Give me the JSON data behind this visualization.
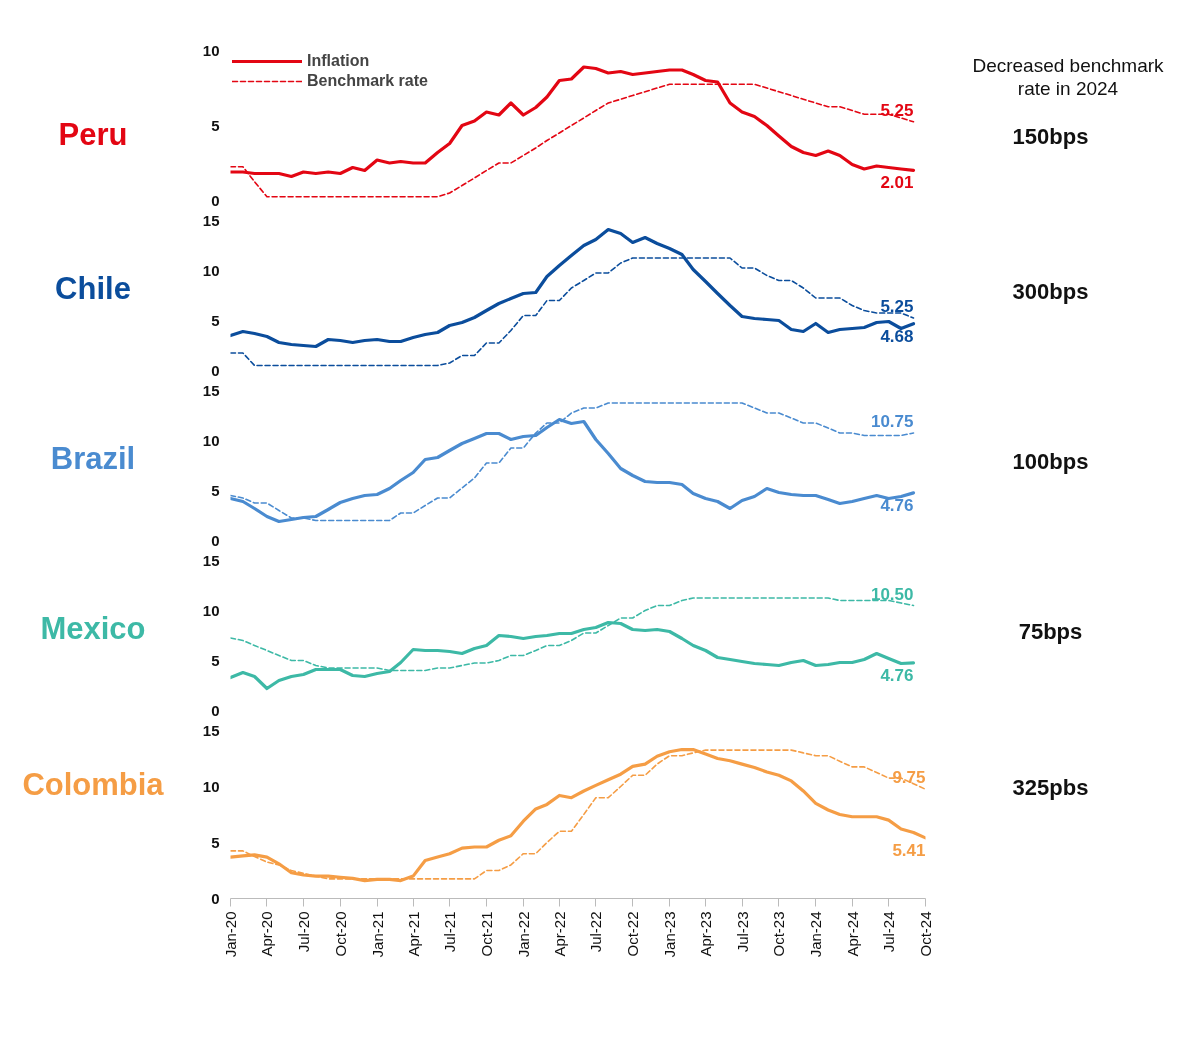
{
  "chart_data": [
    {
      "type": "line",
      "title": "Peru",
      "legend": "top left",
      "tick_labels": "y",
      "xlim": [
        "2020-01",
        "2024-10"
      ],
      "ylim": [
        0,
        10
      ],
      "yticks": [
        0,
        5,
        10
      ],
      "x": [
        "2020-01",
        "2020-02",
        "2020-03",
        "2020-04",
        "2020-05",
        "2020-06",
        "2020-07",
        "2020-08",
        "2020-09",
        "2020-10",
        "2020-11",
        "2020-12",
        "2021-01",
        "2021-02",
        "2021-03",
        "2021-04",
        "2021-05",
        "2021-06",
        "2021-07",
        "2021-08",
        "2021-09",
        "2021-10",
        "2021-11",
        "2021-12",
        "2022-01",
        "2022-02",
        "2022-03",
        "2022-04",
        "2022-05",
        "2022-06",
        "2022-07",
        "2022-08",
        "2022-09",
        "2022-10",
        "2022-11",
        "2022-12",
        "2023-01",
        "2023-02",
        "2023-03",
        "2023-04",
        "2023-05",
        "2023-06",
        "2023-07",
        "2023-08",
        "2023-09",
        "2023-10",
        "2023-11",
        "2023-12",
        "2024-01",
        "2024-02",
        "2024-03",
        "2024-04",
        "2024-05",
        "2024-06",
        "2024-07",
        "2024-08",
        "2024-09"
      ],
      "series": [
        {
          "name": "Inflation",
          "color": "#e30613",
          "line_style": "solid",
          "values": [
            1.9,
            1.9,
            1.8,
            1.8,
            1.8,
            1.6,
            1.9,
            1.8,
            1.9,
            1.8,
            2.2,
            2.0,
            2.7,
            2.5,
            2.6,
            2.5,
            2.5,
            3.2,
            3.8,
            5.0,
            5.3,
            5.9,
            5.7,
            6.5,
            5.7,
            6.2,
            6.9,
            8.0,
            8.1,
            8.9,
            8.8,
            8.5,
            8.6,
            8.4,
            8.5,
            8.6,
            8.7,
            8.7,
            8.4,
            8.0,
            7.9,
            6.5,
            5.9,
            5.6,
            5.0,
            4.3,
            3.6,
            3.2,
            3.0,
            3.3,
            3.0,
            2.4,
            2.1,
            2.3,
            2.2,
            2.1,
            2.01
          ]
        },
        {
          "name": "Benchmark rate",
          "color": "#e30613",
          "line_style": "dashed",
          "values": [
            2.25,
            2.25,
            1.25,
            0.25,
            0.25,
            0.25,
            0.25,
            0.25,
            0.25,
            0.25,
            0.25,
            0.25,
            0.25,
            0.25,
            0.25,
            0.25,
            0.25,
            0.25,
            0.5,
            1.0,
            1.5,
            2.0,
            2.5,
            2.5,
            3.0,
            3.5,
            4.0,
            4.5,
            5.0,
            5.5,
            6.0,
            6.5,
            6.75,
            7.0,
            7.25,
            7.5,
            7.75,
            7.75,
            7.75,
            7.75,
            7.75,
            7.75,
            7.75,
            7.75,
            7.5,
            7.25,
            7.0,
            6.75,
            6.5,
            6.25,
            6.25,
            6.0,
            5.75,
            5.75,
            5.75,
            5.5,
            5.25
          ]
        }
      ],
      "annotations": [
        "Decreased benchmark rate in 2024",
        {
          "text": "5.25",
          "x": "2024-09",
          "y": 5.25
        },
        {
          "text": "2.01",
          "x": "2024-09",
          "y": 2.01
        },
        "150bps"
      ]
    },
    {
      "type": "line",
      "title": "Chile",
      "tick_labels": "y",
      "xlim": [
        "2020-01",
        "2024-10"
      ],
      "ylim": [
        0,
        15
      ],
      "yticks": [
        0,
        5,
        10,
        15
      ],
      "x": [
        "2020-01",
        "2020-02",
        "2020-03",
        "2020-04",
        "2020-05",
        "2020-06",
        "2020-07",
        "2020-08",
        "2020-09",
        "2020-10",
        "2020-11",
        "2020-12",
        "2021-01",
        "2021-02",
        "2021-03",
        "2021-04",
        "2021-05",
        "2021-06",
        "2021-07",
        "2021-08",
        "2021-09",
        "2021-10",
        "2021-11",
        "2021-12",
        "2022-01",
        "2022-02",
        "2022-03",
        "2022-04",
        "2022-05",
        "2022-06",
        "2022-07",
        "2022-08",
        "2022-09",
        "2022-10",
        "2022-11",
        "2022-12",
        "2023-01",
        "2023-02",
        "2023-03",
        "2023-04",
        "2023-05",
        "2023-06",
        "2023-07",
        "2023-08",
        "2023-09",
        "2023-10",
        "2023-11",
        "2023-12",
        "2024-01",
        "2024-02",
        "2024-03",
        "2024-04",
        "2024-05",
        "2024-06",
        "2024-07",
        "2024-08",
        "2024-09"
      ],
      "series": [
        {
          "color": "#0b4d9c",
          "line_style": "solid",
          "values": [
            3.5,
            3.9,
            3.7,
            3.4,
            2.8,
            2.6,
            2.5,
            2.4,
            3.1,
            3.0,
            2.8,
            3.0,
            3.1,
            2.9,
            2.9,
            3.3,
            3.6,
            3.8,
            4.5,
            4.8,
            5.3,
            6.0,
            6.7,
            7.2,
            7.7,
            7.8,
            9.4,
            10.5,
            11.5,
            12.5,
            13.1,
            14.1,
            13.7,
            12.8,
            13.3,
            12.7,
            12.2,
            11.6,
            10.1,
            8.9,
            7.7,
            6.5,
            5.4,
            5.2,
            5.1,
            5.0,
            4.1,
            3.9,
            4.7,
            3.8,
            4.1,
            4.2,
            4.3,
            4.8,
            4.9,
            4.2,
            4.68
          ]
        },
        {
          "color": "#0b4d9c",
          "line_style": "dashed",
          "values": [
            1.75,
            1.75,
            0.5,
            0.5,
            0.5,
            0.5,
            0.5,
            0.5,
            0.5,
            0.5,
            0.5,
            0.5,
            0.5,
            0.5,
            0.5,
            0.5,
            0.5,
            0.5,
            0.75,
            1.5,
            1.5,
            2.75,
            2.75,
            4.0,
            5.5,
            5.5,
            7.0,
            7.0,
            8.25,
            9.0,
            9.75,
            9.75,
            10.75,
            11.25,
            11.25,
            11.25,
            11.25,
            11.25,
            11.25,
            11.25,
            11.25,
            11.25,
            10.25,
            10.25,
            9.5,
            9.0,
            9.0,
            8.25,
            7.25,
            7.25,
            7.25,
            6.5,
            6.0,
            5.75,
            5.75,
            5.75,
            5.25
          ]
        }
      ],
      "annotations": [
        {
          "text": "5.25",
          "x": "2024-09",
          "y": 5.25
        },
        {
          "text": "4.68",
          "x": "2024-09",
          "y": 4.68
        },
        "300bps"
      ]
    },
    {
      "type": "line",
      "title": "Brazil",
      "tick_labels": "y",
      "xlim": [
        "2020-01",
        "2024-10"
      ],
      "ylim": [
        0,
        15
      ],
      "yticks": [
        0,
        5,
        10,
        15
      ],
      "x": [
        "2020-01",
        "2020-02",
        "2020-03",
        "2020-04",
        "2020-05",
        "2020-06",
        "2020-07",
        "2020-08",
        "2020-09",
        "2020-10",
        "2020-11",
        "2020-12",
        "2021-01",
        "2021-02",
        "2021-03",
        "2021-04",
        "2021-05",
        "2021-06",
        "2021-07",
        "2021-08",
        "2021-09",
        "2021-10",
        "2021-11",
        "2021-12",
        "2022-01",
        "2022-02",
        "2022-03",
        "2022-04",
        "2022-05",
        "2022-06",
        "2022-07",
        "2022-08",
        "2022-09",
        "2022-10",
        "2022-11",
        "2022-12",
        "2023-01",
        "2023-02",
        "2023-03",
        "2023-04",
        "2023-05",
        "2023-06",
        "2023-07",
        "2023-08",
        "2023-09",
        "2023-10",
        "2023-11",
        "2023-12",
        "2024-01",
        "2024-02",
        "2024-03",
        "2024-04",
        "2024-05",
        "2024-06",
        "2024-07",
        "2024-08",
        "2024-09"
      ],
      "series": [
        {
          "color": "#4a8bd0",
          "line_style": "solid",
          "values": [
            4.2,
            3.9,
            3.2,
            2.4,
            1.9,
            2.1,
            2.3,
            2.4,
            3.1,
            3.8,
            4.2,
            4.5,
            4.6,
            5.2,
            6.0,
            6.8,
            8.1,
            8.3,
            9.0,
            9.7,
            10.2,
            10.7,
            10.7,
            10.1,
            10.4,
            10.5,
            11.3,
            12.1,
            11.7,
            11.9,
            10.1,
            8.7,
            7.2,
            6.5,
            5.9,
            5.8,
            5.8,
            5.6,
            4.7,
            4.2,
            3.9,
            3.2,
            4.0,
            4.4,
            5.2,
            4.8,
            4.6,
            4.5,
            4.5,
            4.1,
            3.7,
            3.9,
            4.2,
            4.5,
            4.2,
            4.4,
            4.76
          ]
        },
        {
          "color": "#4a8bd0",
          "line_style": "dashed",
          "values": [
            4.5,
            4.25,
            3.75,
            3.75,
            3.0,
            2.25,
            2.25,
            2.0,
            2.0,
            2.0,
            2.0,
            2.0,
            2.0,
            2.0,
            2.75,
            2.75,
            3.5,
            4.25,
            4.25,
            5.25,
            6.25,
            7.75,
            7.75,
            9.25,
            9.25,
            10.75,
            11.75,
            11.75,
            12.75,
            13.25,
            13.25,
            13.75,
            13.75,
            13.75,
            13.75,
            13.75,
            13.75,
            13.75,
            13.75,
            13.75,
            13.75,
            13.75,
            13.75,
            13.25,
            12.75,
            12.75,
            12.25,
            11.75,
            11.75,
            11.25,
            10.75,
            10.75,
            10.5,
            10.5,
            10.5,
            10.5,
            10.75
          ]
        }
      ],
      "annotations": [
        {
          "text": "10.75",
          "x": "2024-09",
          "y": 10.75
        },
        {
          "text": "4.76",
          "x": "2024-09",
          "y": 4.76
        },
        "100bps"
      ]
    },
    {
      "type": "line",
      "title": "Mexico",
      "tick_labels": "y",
      "xlim": [
        "2020-01",
        "2024-10"
      ],
      "ylim": [
        0,
        15
      ],
      "yticks": [
        0,
        5,
        10,
        15
      ],
      "x": [
        "2020-01",
        "2020-02",
        "2020-03",
        "2020-04",
        "2020-05",
        "2020-06",
        "2020-07",
        "2020-08",
        "2020-09",
        "2020-10",
        "2020-11",
        "2020-12",
        "2021-01",
        "2021-02",
        "2021-03",
        "2021-04",
        "2021-05",
        "2021-06",
        "2021-07",
        "2021-08",
        "2021-09",
        "2021-10",
        "2021-11",
        "2021-12",
        "2022-01",
        "2022-02",
        "2022-03",
        "2022-04",
        "2022-05",
        "2022-06",
        "2022-07",
        "2022-08",
        "2022-09",
        "2022-10",
        "2022-11",
        "2022-12",
        "2023-01",
        "2023-02",
        "2023-03",
        "2023-04",
        "2023-05",
        "2023-06",
        "2023-07",
        "2023-08",
        "2023-09",
        "2023-10",
        "2023-11",
        "2023-12",
        "2024-01",
        "2024-02",
        "2024-03",
        "2024-04",
        "2024-05",
        "2024-06",
        "2024-07",
        "2024-08",
        "2024-09"
      ],
      "series": [
        {
          "color": "#3db9a6",
          "line_style": "solid",
          "values": [
            3.3,
            3.8,
            3.4,
            2.2,
            3.0,
            3.4,
            3.6,
            4.1,
            4.1,
            4.1,
            3.5,
            3.4,
            3.7,
            3.9,
            4.8,
            6.1,
            6.0,
            6.0,
            5.9,
            5.7,
            6.2,
            6.5,
            7.5,
            7.4,
            7.2,
            7.4,
            7.5,
            7.7,
            7.7,
            8.1,
            8.3,
            8.8,
            8.7,
            8.1,
            8.0,
            8.1,
            7.9,
            7.2,
            6.5,
            6.0,
            5.3,
            5.1,
            4.9,
            4.7,
            4.6,
            4.5,
            4.8,
            5.0,
            4.5,
            4.6,
            4.8,
            4.8,
            5.1,
            5.7,
            5.2,
            4.7,
            4.76
          ]
        },
        {
          "color": "#3db9a6",
          "line_style": "dashed",
          "values": [
            7.25,
            7.0,
            6.5,
            6.0,
            5.5,
            5.0,
            5.0,
            4.5,
            4.25,
            4.25,
            4.25,
            4.25,
            4.25,
            4.0,
            4.0,
            4.0,
            4.0,
            4.25,
            4.25,
            4.5,
            4.75,
            4.75,
            5.0,
            5.5,
            5.5,
            6.0,
            6.5,
            6.5,
            7.0,
            7.75,
            7.75,
            8.5,
            9.25,
            9.25,
            10.0,
            10.5,
            10.5,
            11.0,
            11.25,
            11.25,
            11.25,
            11.25,
            11.25,
            11.25,
            11.25,
            11.25,
            11.25,
            11.25,
            11.25,
            11.25,
            11.0,
            11.0,
            11.0,
            11.0,
            11.0,
            10.75,
            10.5
          ]
        }
      ],
      "annotations": [
        {
          "text": "10.50",
          "x": "2024-09",
          "y": 10.5
        },
        {
          "text": "4.76",
          "x": "2024-09",
          "y": 4.76
        },
        "75bps"
      ]
    },
    {
      "type": "line",
      "title": "Colombia",
      "xlim": [
        "2020-01",
        "2024-10"
      ],
      "ylim": [
        0,
        15
      ],
      "yticks": [
        0,
        5,
        10,
        15
      ],
      "xticks": [
        {
          "value": "2020-01",
          "label": "Jan-20"
        },
        {
          "value": "2020-04",
          "label": "Apr-20"
        },
        {
          "value": "2020-07",
          "label": "Jul-20"
        },
        {
          "value": "2020-10",
          "label": "Oct-20"
        },
        {
          "value": "2021-01",
          "label": "Jan-21"
        },
        {
          "value": "2021-04",
          "label": "Apr-21"
        },
        {
          "value": "2021-07",
          "label": "Jul-21"
        },
        {
          "value": "2021-10",
          "label": "Oct-21"
        },
        {
          "value": "2022-01",
          "label": "Jan-22"
        },
        {
          "value": "2022-04",
          "label": "Apr-22"
        },
        {
          "value": "2022-07",
          "label": "Jul-22"
        },
        {
          "value": "2022-10",
          "label": "Oct-22"
        },
        {
          "value": "2023-01",
          "label": "Jan-23"
        },
        {
          "value": "2023-04",
          "label": "Apr-23"
        },
        {
          "value": "2023-07",
          "label": "Jul-23"
        },
        {
          "value": "2023-10",
          "label": "Oct-23"
        },
        {
          "value": "2024-01",
          "label": "Jan-24"
        },
        {
          "value": "2024-04",
          "label": "Apr-24"
        },
        {
          "value": "2024-07",
          "label": "Jul-24"
        },
        {
          "value": "2024-10",
          "label": "Oct-24"
        }
      ],
      "x": [
        "2020-01",
        "2020-02",
        "2020-03",
        "2020-04",
        "2020-05",
        "2020-06",
        "2020-07",
        "2020-08",
        "2020-09",
        "2020-10",
        "2020-11",
        "2020-12",
        "2021-01",
        "2021-02",
        "2021-03",
        "2021-04",
        "2021-05",
        "2021-06",
        "2021-07",
        "2021-08",
        "2021-09",
        "2021-10",
        "2021-11",
        "2021-12",
        "2022-01",
        "2022-02",
        "2022-03",
        "2022-04",
        "2022-05",
        "2022-06",
        "2022-07",
        "2022-08",
        "2022-09",
        "2022-10",
        "2022-11",
        "2022-12",
        "2023-01",
        "2023-02",
        "2023-03",
        "2023-04",
        "2023-05",
        "2023-06",
        "2023-07",
        "2023-08",
        "2023-09",
        "2023-10",
        "2023-11",
        "2023-12",
        "2024-01",
        "2024-02",
        "2024-03",
        "2024-04",
        "2024-05",
        "2024-06",
        "2024-07",
        "2024-08",
        "2024-09",
        "2024-10"
      ],
      "series": [
        {
          "color": "#f59d45",
          "line_style": "solid",
          "values": [
            3.7,
            3.8,
            3.9,
            3.7,
            3.1,
            2.3,
            2.1,
            2.0,
            2.0,
            1.9,
            1.8,
            1.6,
            1.7,
            1.7,
            1.6,
            2.0,
            3.4,
            3.7,
            4.0,
            4.5,
            4.6,
            4.6,
            5.2,
            5.6,
            6.9,
            8.0,
            8.4,
            9.2,
            9.0,
            9.6,
            10.1,
            10.6,
            11.1,
            11.8,
            12.0,
            12.7,
            13.1,
            13.3,
            13.3,
            12.9,
            12.5,
            12.3,
            12.0,
            11.7,
            11.3,
            11.0,
            10.5,
            9.6,
            8.5,
            7.9,
            7.5,
            7.3,
            7.3,
            7.3,
            7.0,
            6.2,
            5.9,
            5.41
          ]
        },
        {
          "color": "#f59d45",
          "line_style": "dashed",
          "values": [
            4.25,
            4.25,
            3.75,
            3.25,
            3.0,
            2.5,
            2.25,
            2.0,
            1.75,
            1.75,
            1.75,
            1.75,
            1.75,
            1.75,
            1.75,
            1.75,
            1.75,
            1.75,
            1.75,
            1.75,
            1.75,
            2.5,
            2.5,
            3.0,
            4.0,
            4.0,
            5.0,
            6.0,
            6.0,
            7.5,
            9.0,
            9.0,
            10.0,
            11.0,
            11.0,
            12.0,
            12.75,
            12.75,
            13.0,
            13.25,
            13.25,
            13.25,
            13.25,
            13.25,
            13.25,
            13.25,
            13.25,
            13.0,
            12.75,
            12.75,
            12.25,
            11.75,
            11.75,
            11.25,
            10.75,
            10.75,
            10.25,
            9.75
          ]
        }
      ],
      "annotations": [
        {
          "text": "9.75",
          "x": "2024-10",
          "y": 9.75
        },
        {
          "text": "5.41",
          "x": "2024-10",
          "y": 5.41
        },
        "325pbs"
      ]
    }
  ]
}
